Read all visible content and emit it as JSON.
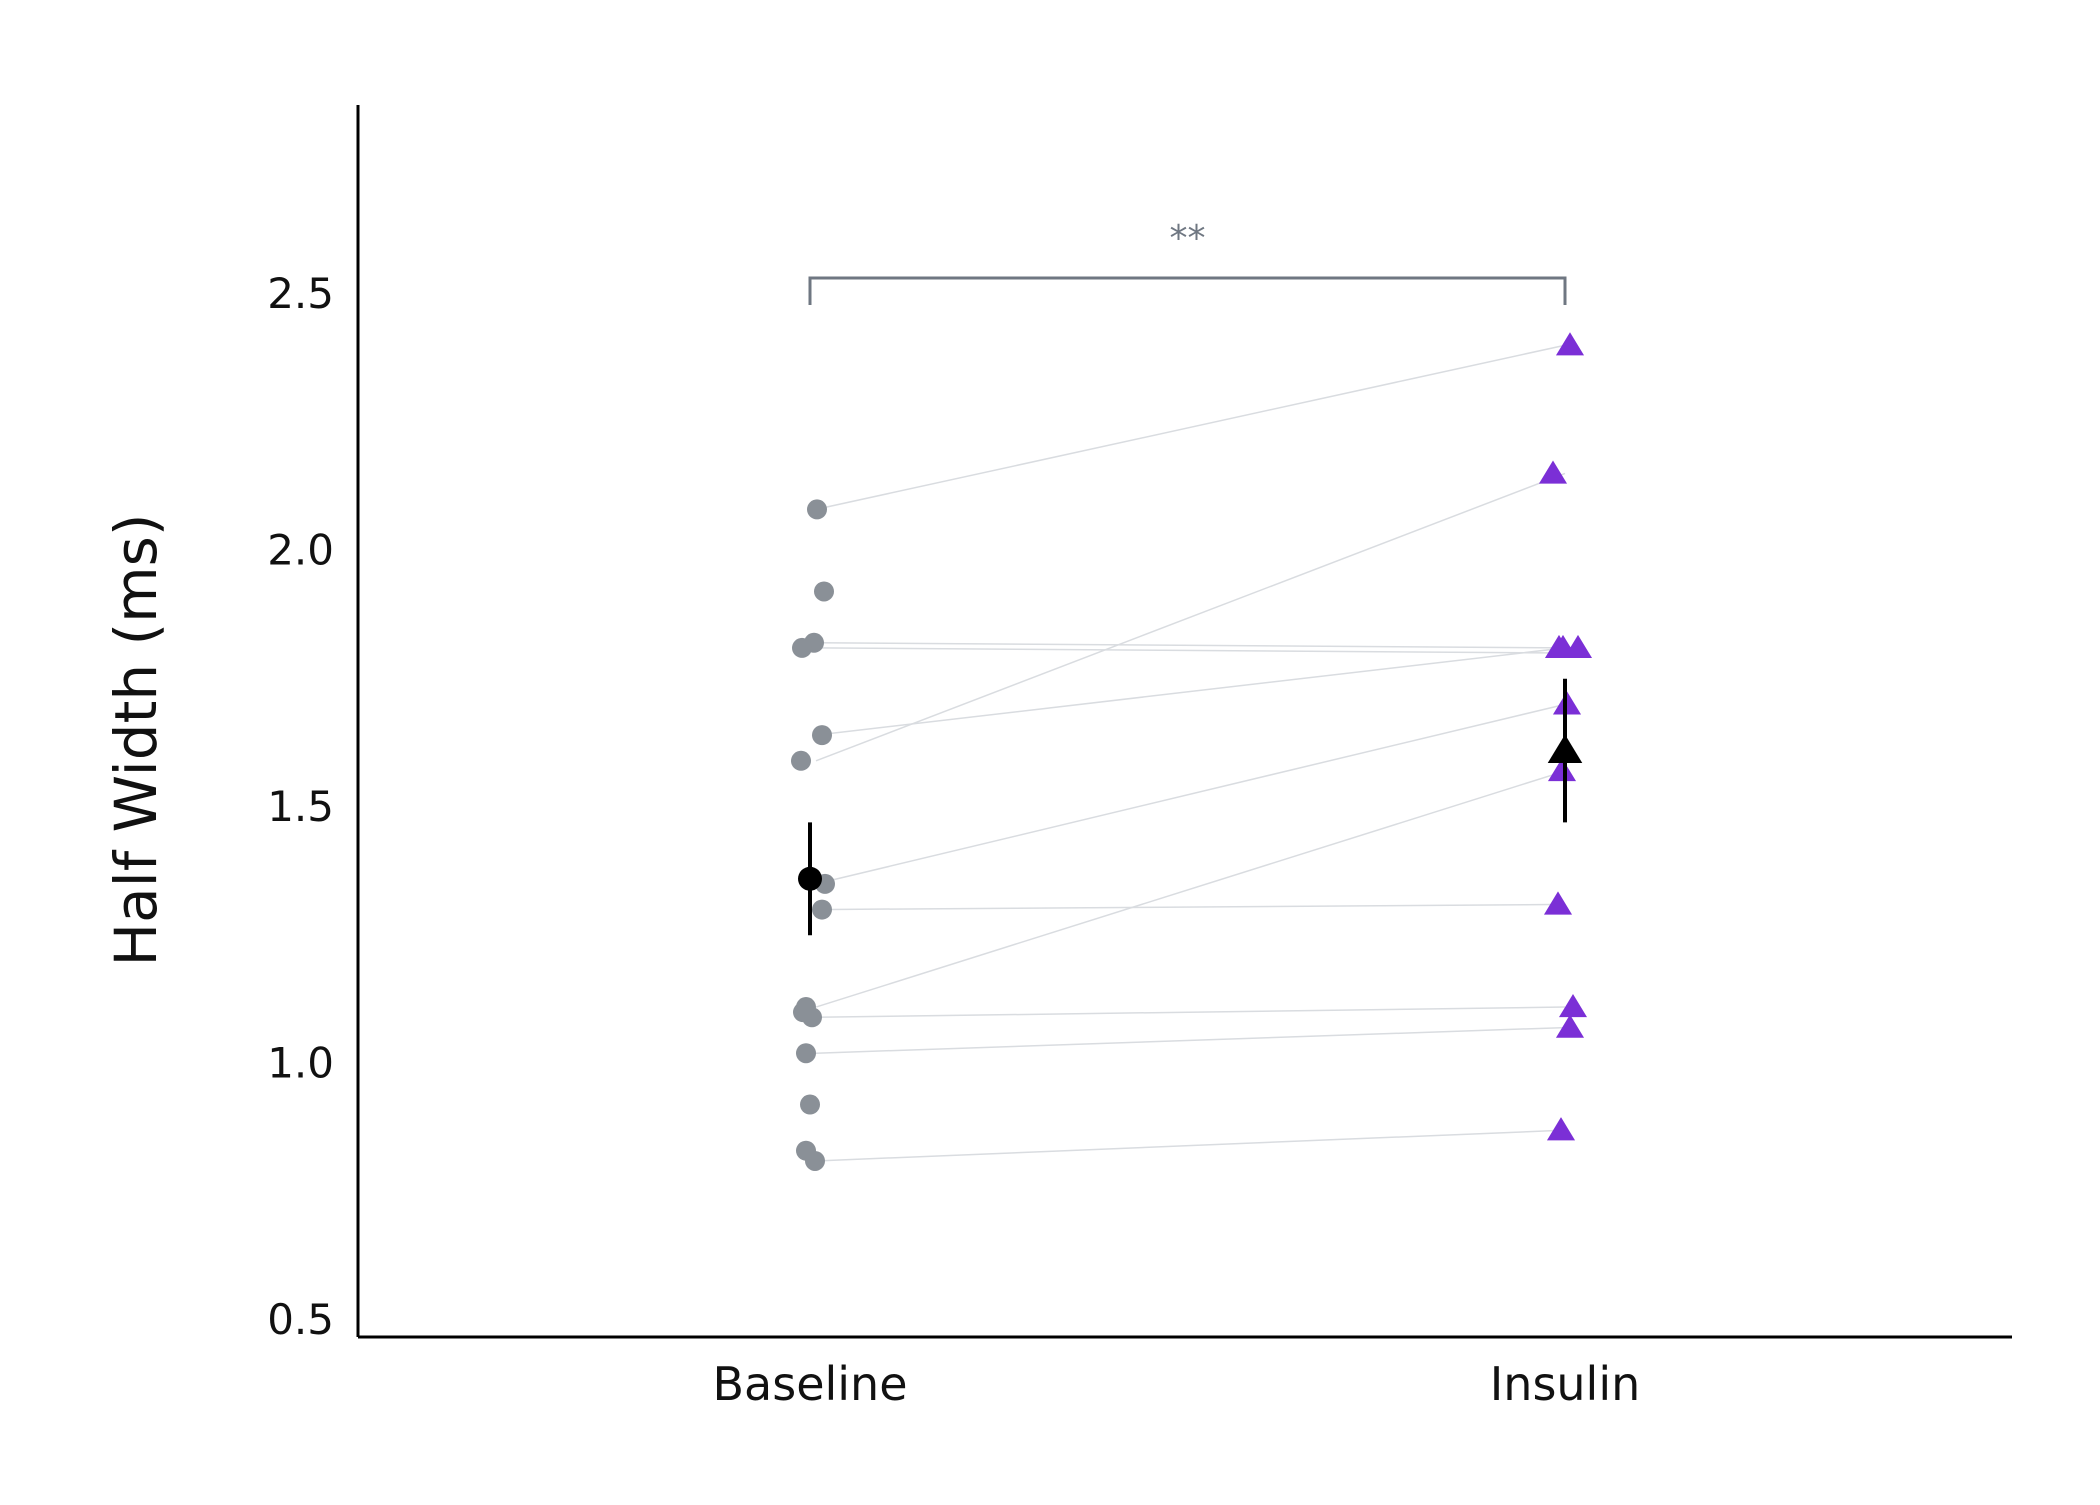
{
  "chart_data": {
    "type": "scatter",
    "ylabel": "Half Width (ms)",
    "xlabel": "",
    "categories": [
      "Baseline",
      "Insulin"
    ],
    "ylim": [
      0.5,
      2.8
    ],
    "yticks": [
      0.5,
      1.0,
      1.5,
      2.0,
      2.5
    ],
    "ytick_labels": [
      "0.5",
      "1.0",
      "1.5",
      "2.0",
      "2.5"
    ],
    "grid": false,
    "series": [
      {
        "category": "Baseline",
        "marker": "circle",
        "color": "#8a9097",
        "values": [
          2.08,
          1.92,
          1.82,
          1.81,
          1.64,
          1.59,
          1.35,
          1.3,
          1.11,
          1.1,
          1.09,
          1.02,
          0.92,
          0.83,
          0.81
        ]
      },
      {
        "category": "Insulin",
        "marker": "triangle",
        "color": "#7b2fd6",
        "values": [
          2.4,
          2.15,
          1.81,
          1.81,
          1.81,
          1.7,
          1.57,
          1.31,
          1.11,
          1.07,
          0.87
        ]
      }
    ],
    "paired_lines": [
      [
        2.08,
        2.4
      ],
      [
        1.82,
        1.81
      ],
      [
        1.81,
        1.8
      ],
      [
        1.64,
        1.81
      ],
      [
        1.59,
        2.15
      ],
      [
        1.35,
        1.7
      ],
      [
        1.3,
        1.31
      ],
      [
        1.11,
        1.57
      ],
      [
        1.09,
        1.11
      ],
      [
        1.02,
        1.07
      ],
      [
        0.81,
        0.87
      ]
    ],
    "summary": [
      {
        "category": "Baseline",
        "marker": "circle",
        "mean": 1.36,
        "err_low": 1.25,
        "err_high": 1.47,
        "color": "#000000"
      },
      {
        "category": "Insulin",
        "marker": "triangle",
        "mean": 1.61,
        "err_low": 1.47,
        "err_high": 1.75,
        "color": "#000000"
      }
    ],
    "significance": {
      "from": "Baseline",
      "to": "Insulin",
      "label": "**"
    }
  }
}
